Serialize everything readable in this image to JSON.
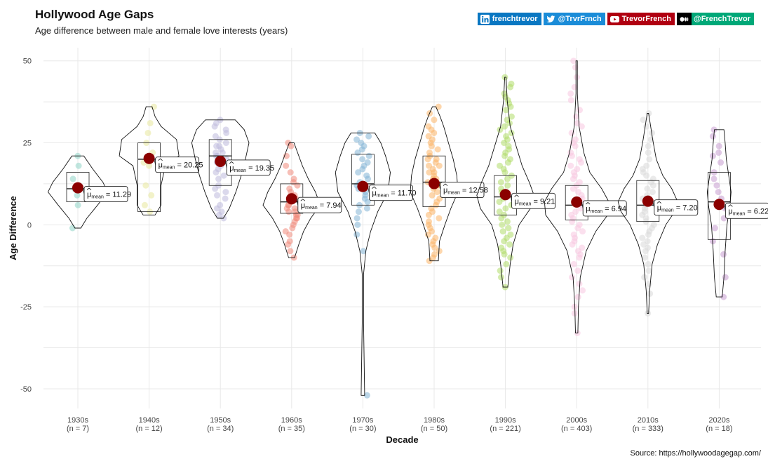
{
  "header": {
    "title": "Hollywood Age Gaps",
    "subtitle": "Age difference between male and female love interests (years)",
    "source": "Source: https://hollywoodagegap.com/"
  },
  "social": [
    {
      "name": "linkedin",
      "label": "frenchtrevor",
      "color": "#0a77c2",
      "icon": "linkedin-icon"
    },
    {
      "name": "twitter",
      "label": "@TrvrFrnch",
      "color": "#1a8cd8",
      "icon": "twitter-icon"
    },
    {
      "name": "youtube",
      "label": "TrevorFrench",
      "color": "#b00011",
      "icon": "youtube-icon"
    },
    {
      "name": "medium",
      "label": "@FrenchTrevor",
      "color": "#000000",
      "icon": "medium-icon"
    },
    {
      "name": "medium-green",
      "label": "",
      "color": "#00a878",
      "icon": ""
    }
  ],
  "chart_data": {
    "type": "violin",
    "title": "Hollywood Age Gaps",
    "subtitle": "Age difference between male and female love interests (years)",
    "xlabel": "Decade",
    "ylabel": "Age Difference",
    "ylim": [
      -56,
      54
    ],
    "yticks": [
      -50,
      -25,
      0,
      25,
      50
    ],
    "grid": true,
    "mean_marker_color": "#8b0000",
    "categories": [
      "1930s",
      "1940s",
      "1950s",
      "1960s",
      "1970s",
      "1980s",
      "1990s",
      "2000s",
      "2010s",
      "2020s"
    ],
    "counts": [
      "(n = 7)",
      "(n = 12)",
      "(n = 34)",
      "(n = 35)",
      "(n = 30)",
      "(n = 50)",
      "(n = 221)",
      "(n = 403)",
      "(n = 333)",
      "(n = 18)"
    ],
    "means": [
      11.29,
      20.25,
      19.35,
      7.94,
      11.7,
      12.58,
      9.21,
      6.94,
      7.2,
      6.22
    ],
    "mean_labels": [
      "11.29",
      "20.25",
      "19.35",
      "7.94",
      "11.70",
      "12.58",
      "9.21",
      "6.94",
      "7.20",
      "6.22"
    ],
    "mean_label_prefix": "μ",
    "mean_label_sub": "mean",
    "colors": [
      "#8fd3c6",
      "#e8e79c",
      "#bdb9dc",
      "#f08a7c",
      "#84b5d6",
      "#fbb467",
      "#b0dc6a",
      "#f8c7e0",
      "#d8d8d8",
      "#c69cd0"
    ],
    "boxes": [
      {
        "q1": 7,
        "median": 11,
        "q3": 16
      },
      {
        "q1": 4,
        "median": 20,
        "q3": 25
      },
      {
        "q1": 12,
        "median": 21,
        "q3": 26
      },
      {
        "q1": 3.5,
        "median": 7,
        "q3": 12.5
      },
      {
        "q1": 6,
        "median": 12.5,
        "q3": 21.5
      },
      {
        "q1": 5.5,
        "median": 13,
        "q3": 21
      },
      {
        "q1": 3,
        "median": 8.5,
        "q3": 15
      },
      {
        "q1": 1.5,
        "median": 6,
        "q3": 12
      },
      {
        "q1": 1,
        "median": 6,
        "q3": 13.5
      },
      {
        "q1": -4.5,
        "median": 7,
        "q3": 16
      }
    ],
    "violins": [
      {
        "min": -1,
        "max": 21,
        "profile": [
          [
            -1,
            0.5
          ],
          [
            2,
            1.5
          ],
          [
            6,
            3.3
          ],
          [
            10,
            5.0
          ],
          [
            13,
            4.2
          ],
          [
            17,
            2.5
          ],
          [
            21,
            1.0
          ]
        ]
      },
      {
        "min": 3,
        "max": 36,
        "profile": [
          [
            3,
            1.0
          ],
          [
            6,
            2.0
          ],
          [
            12,
            2.0
          ],
          [
            18,
            2.7
          ],
          [
            21,
            5.0
          ],
          [
            26,
            4.6
          ],
          [
            30,
            2.0
          ],
          [
            33,
            1.0
          ],
          [
            36,
            0.5
          ]
        ]
      },
      {
        "min": 2,
        "max": 32,
        "profile": [
          [
            2,
            0.5
          ],
          [
            5,
            1.5
          ],
          [
            10,
            2.6
          ],
          [
            15,
            3.5
          ],
          [
            20,
            4.2
          ],
          [
            25,
            4.8
          ],
          [
            29,
            4.0
          ],
          [
            32,
            2.5
          ]
        ]
      },
      {
        "min": -10,
        "max": 25,
        "profile": [
          [
            -10,
            0.5
          ],
          [
            -6,
            1.2
          ],
          [
            -2,
            2.0
          ],
          [
            2,
            3.2
          ],
          [
            6,
            4.8
          ],
          [
            10,
            4.0
          ],
          [
            14,
            2.8
          ],
          [
            18,
            1.8
          ],
          [
            22,
            1.0
          ],
          [
            25,
            0.4
          ]
        ]
      },
      {
        "min": -52,
        "max": 28,
        "profile": [
          [
            -52,
            0.3
          ],
          [
            -30,
            0.1
          ],
          [
            -15,
            0.1
          ],
          [
            -8,
            0.5
          ],
          [
            -2,
            1.3
          ],
          [
            4,
            2.5
          ],
          [
            10,
            4.2
          ],
          [
            16,
            4.6
          ],
          [
            21,
            3.8
          ],
          [
            25,
            3.0
          ],
          [
            28,
            2.0
          ]
        ]
      },
      {
        "min": -11,
        "max": 36,
        "profile": [
          [
            -11,
            0.7
          ],
          [
            -5,
            0.9
          ],
          [
            0,
            1.8
          ],
          [
            5,
            2.8
          ],
          [
            10,
            4.0
          ],
          [
            15,
            3.8
          ],
          [
            20,
            3.2
          ],
          [
            25,
            2.4
          ],
          [
            30,
            1.6
          ],
          [
            33,
            1.0
          ],
          [
            36,
            0.3
          ]
        ]
      },
      {
        "min": -19,
        "max": 45,
        "profile": [
          [
            -19,
            0.4
          ],
          [
            -12,
            0.8
          ],
          [
            -6,
            1.3
          ],
          [
            0,
            2.3
          ],
          [
            5,
            4.2
          ],
          [
            9,
            4.8
          ],
          [
            13,
            4.0
          ],
          [
            18,
            2.8
          ],
          [
            24,
            1.8
          ],
          [
            30,
            0.8
          ],
          [
            38,
            0.3
          ],
          [
            45,
            0.1
          ]
        ]
      },
      {
        "min": -33,
        "max": 50,
        "profile": [
          [
            -33,
            0.2
          ],
          [
            -25,
            0.3
          ],
          [
            -16,
            0.6
          ],
          [
            -8,
            1.6
          ],
          [
            -2,
            3.2
          ],
          [
            3,
            5.2
          ],
          [
            7,
            5.4
          ],
          [
            11,
            4.2
          ],
          [
            16,
            2.2
          ],
          [
            22,
            1.2
          ],
          [
            30,
            0.4
          ],
          [
            40,
            0.1
          ],
          [
            50,
            0.05
          ]
        ]
      },
      {
        "min": -27,
        "max": 34,
        "profile": [
          [
            -27,
            0.1
          ],
          [
            -20,
            0.3
          ],
          [
            -12,
            0.7
          ],
          [
            -6,
            1.6
          ],
          [
            0,
            3.0
          ],
          [
            4,
            4.5
          ],
          [
            7,
            5.0
          ],
          [
            11,
            4.0
          ],
          [
            15,
            2.5
          ],
          [
            20,
            1.4
          ],
          [
            26,
            0.8
          ],
          [
            34,
            0.1
          ]
        ]
      },
      {
        "min": -22,
        "max": 29,
        "profile": [
          [
            -22,
            0.5
          ],
          [
            -16,
            0.8
          ],
          [
            -8,
            1.0
          ],
          [
            0,
            1.3
          ],
          [
            6,
            1.8
          ],
          [
            10,
            2.0
          ],
          [
            15,
            1.6
          ],
          [
            20,
            1.2
          ],
          [
            25,
            1.0
          ],
          [
            29,
            0.8
          ]
        ]
      }
    ],
    "points": [
      [
        21,
        18,
        14,
        11,
        9,
        6,
        -1
      ],
      [
        36,
        31,
        28,
        25,
        22,
        20,
        19,
        18,
        12,
        9,
        6,
        4
      ],
      [
        32,
        31,
        30,
        29,
        28,
        27,
        26,
        25,
        24,
        24,
        23,
        22,
        21,
        21,
        20,
        20,
        19,
        18,
        17,
        16,
        15,
        14,
        12,
        11,
        10,
        9,
        8,
        6,
        5,
        4,
        3,
        2,
        19,
        22
      ],
      [
        25,
        24,
        21,
        18,
        16,
        14,
        13,
        12,
        11,
        10,
        9,
        8,
        8,
        7,
        7,
        6,
        6,
        5,
        5,
        4,
        4,
        3,
        3,
        2,
        2,
        1,
        0,
        -1,
        -2,
        -3,
        -5,
        -6,
        -8,
        -10,
        9
      ],
      [
        28,
        27,
        26,
        25,
        24,
        23,
        22,
        21,
        20,
        19,
        18,
        17,
        16,
        15,
        14,
        13,
        12,
        11,
        10,
        9,
        8,
        7,
        6,
        5,
        4,
        2,
        0,
        -3,
        -8,
        -52
      ],
      [
        36,
        34,
        32,
        30,
        29,
        28,
        27,
        26,
        25,
        24,
        23,
        22,
        21,
        20,
        19,
        18,
        17,
        16,
        15,
        14,
        13,
        12,
        11,
        10,
        9,
        8,
        7,
        6,
        5,
        4,
        3,
        2,
        1,
        0,
        -1,
        -2,
        -3,
        -4,
        -5,
        -6,
        -7,
        -8,
        -9,
        -10,
        -11,
        12,
        14,
        16,
        18,
        20
      ],
      [
        45,
        43,
        42,
        40,
        39,
        38,
        37,
        36,
        35,
        33,
        32,
        31,
        30,
        29,
        28,
        27,
        26,
        25,
        24,
        23,
        22,
        21,
        20,
        19,
        18,
        17,
        16,
        15,
        14,
        13,
        12,
        11,
        10,
        9,
        8,
        7,
        6,
        5,
        4,
        3,
        2,
        1,
        0,
        -1,
        -2,
        -3,
        -4,
        -5,
        -6,
        -7,
        -8,
        -9,
        -10,
        -12,
        -14,
        -16,
        -19
      ],
      [
        50,
        48,
        45,
        42,
        40,
        38,
        35,
        33,
        31,
        30,
        28,
        26,
        25,
        24,
        22,
        21,
        20,
        19,
        18,
        17,
        16,
        15,
        14,
        13,
        12,
        11,
        10,
        9,
        8,
        7,
        6,
        5,
        4,
        3,
        2,
        1,
        0,
        -1,
        -2,
        -3,
        -4,
        -5,
        -6,
        -7,
        -8,
        -9,
        -10,
        -12,
        -14,
        -16,
        -18,
        -20,
        -22,
        -25,
        -27,
        -33
      ],
      [
        34,
        32,
        30,
        28,
        26,
        24,
        22,
        20,
        18,
        17,
        16,
        15,
        14,
        13,
        12,
        11,
        10,
        9,
        8,
        7,
        6,
        5,
        4,
        3,
        2,
        1,
        0,
        -1,
        -2,
        -3,
        -4,
        -5,
        -6,
        -7,
        -8,
        -10,
        -12,
        -14,
        -16,
        -18,
        -21,
        -27
      ],
      [
        29,
        27,
        24,
        22,
        21,
        19,
        16,
        14,
        12,
        10,
        8,
        5,
        2,
        -1,
        -5,
        -9,
        -16,
        -22
      ]
    ]
  }
}
